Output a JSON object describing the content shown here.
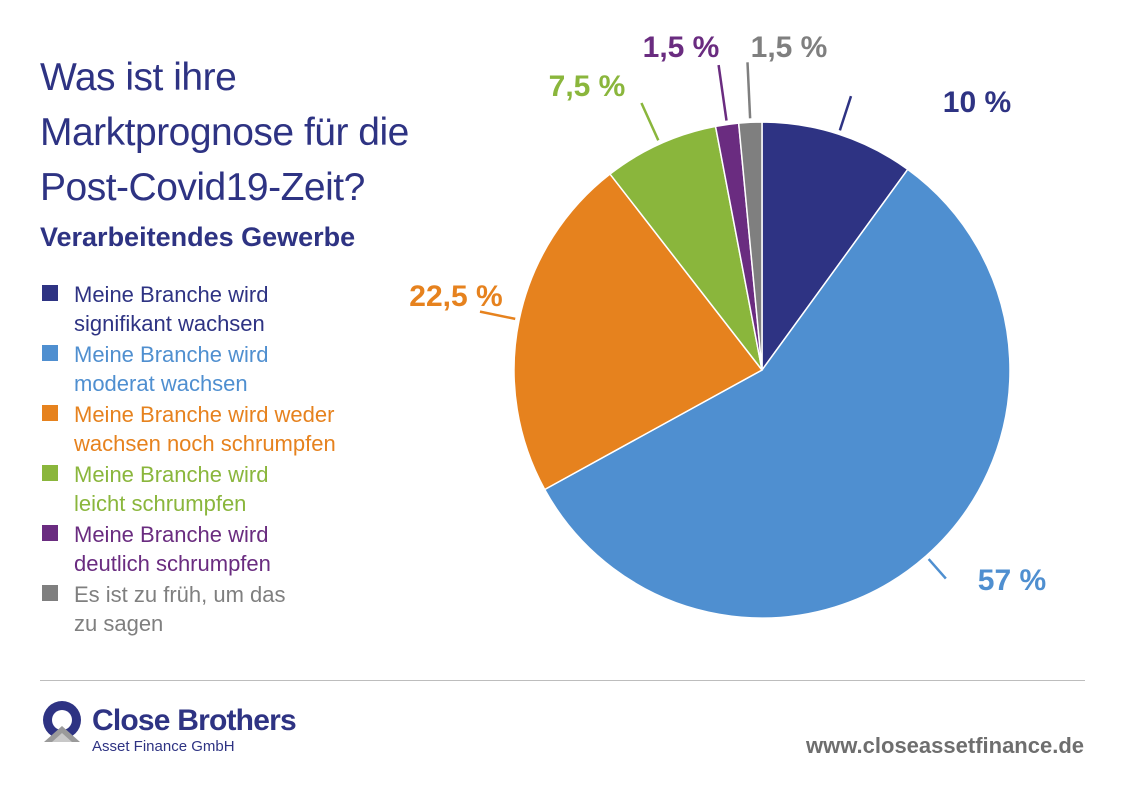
{
  "header": {
    "title_lines": [
      "Was ist ihre",
      "Marktprognose für die",
      "Post-Covid19-Zeit?"
    ],
    "subtitle": "Verarbeitendes Gewerbe"
  },
  "legend": [
    {
      "lines": [
        "Meine Branche wird",
        "signifikant wachsen"
      ],
      "color": "#2e3383"
    },
    {
      "lines": [
        "Meine Branche wird",
        "moderat wachsen"
      ],
      "color": "#4f8fd0"
    },
    {
      "lines": [
        "Meine Branche wird weder",
        "wachsen noch schrumpfen"
      ],
      "color": "#e6821e"
    },
    {
      "lines": [
        "Meine Branche wird",
        "leicht schrumpfen"
      ],
      "color": "#8ab63c"
    },
    {
      "lines": [
        "Meine Branche wird",
        "deutlich schrumpfen"
      ],
      "color": "#6a2c80"
    },
    {
      "lines": [
        "Es ist zu früh, um das",
        "zu sagen"
      ],
      "color": "#7f7f7f"
    }
  ],
  "chart_data": {
    "type": "pie",
    "title": "Was ist ihre Marktprognose für die Post-Covid19-Zeit?",
    "subtitle": "Verarbeitendes Gewerbe",
    "start": "12 o'clock, clockwise",
    "slices": [
      {
        "category": "Meine Branche wird signifikant wachsen",
        "value": 10,
        "label": "10 %",
        "color": "#2e3383"
      },
      {
        "category": "Meine Branche wird moderat wachsen",
        "value": 57,
        "label": "57 %",
        "color": "#4f8fd0"
      },
      {
        "category": "Meine Branche wird weder wachsen noch schrumpfen",
        "value": 22.5,
        "label": "22,5 %",
        "color": "#e6821e"
      },
      {
        "category": "Meine Branche wird leicht schrumpfen",
        "value": 7.5,
        "label": "7,5 %",
        "color": "#8ab63c"
      },
      {
        "category": "Meine Branche wird deutlich schrumpfen",
        "value": 1.5,
        "label": "1,5 %",
        "color": "#6a2c80"
      },
      {
        "category": "Es ist zu früh, um das zu sagen",
        "value": 1.5,
        "label": "1,5 %",
        "color": "#7f7f7f"
      }
    ]
  },
  "footer": {
    "brand_name": "Close Brothers",
    "brand_sub": "Asset Finance GmbH",
    "url": "www.closeassetfinance.de"
  }
}
